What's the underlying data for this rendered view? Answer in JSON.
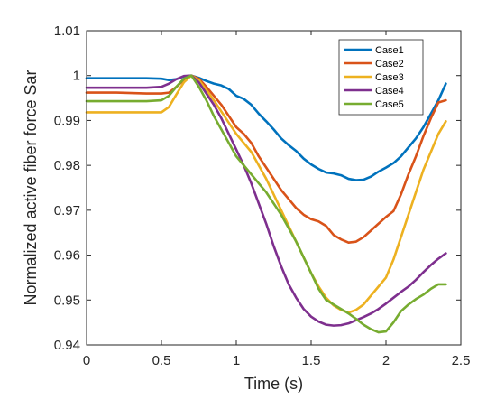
{
  "chart_data": {
    "type": "line",
    "xlabel": "Time (s)",
    "ylabel": "Normalized active fiber force  Sar",
    "xlim": [
      0,
      2.5
    ],
    "ylim": [
      0.94,
      1.01
    ],
    "xticks": [
      0,
      0.5,
      1,
      1.5,
      2,
      2.5
    ],
    "xtick_labels": [
      "0",
      "0.5",
      "1",
      "1.5",
      "2",
      "2.5"
    ],
    "yticks": [
      0.94,
      0.95,
      0.96,
      0.97,
      0.98,
      0.99,
      1.0,
      1.01
    ],
    "ytick_labels": [
      "0.94",
      "0.95",
      "0.96",
      "0.97",
      "0.98",
      "0.99",
      "1",
      "1.01"
    ],
    "grid": false,
    "legend_position": "top-right",
    "series": [
      {
        "name": "Case1",
        "color": "#0072BD",
        "x": [
          0,
          0.1,
          0.2,
          0.3,
          0.4,
          0.5,
          0.55,
          0.6,
          0.65,
          0.7,
          0.75,
          0.8,
          0.85,
          0.9,
          0.95,
          1.0,
          1.05,
          1.1,
          1.15,
          1.2,
          1.25,
          1.3,
          1.35,
          1.4,
          1.45,
          1.5,
          1.55,
          1.6,
          1.65,
          1.7,
          1.75,
          1.8,
          1.85,
          1.9,
          1.95,
          2.0,
          2.05,
          2.1,
          2.15,
          2.2,
          2.25,
          2.3,
          2.35,
          2.4
        ],
        "y": [
          0.9994,
          0.9994,
          0.9994,
          0.9994,
          0.9994,
          0.9993,
          0.999,
          0.9992,
          0.9998,
          1.0,
          0.9995,
          0.9988,
          0.9982,
          0.9978,
          0.997,
          0.9955,
          0.9948,
          0.9935,
          0.9915,
          0.9898,
          0.988,
          0.986,
          0.9845,
          0.9832,
          0.9815,
          0.9802,
          0.9792,
          0.9784,
          0.9782,
          0.9778,
          0.977,
          0.9767,
          0.9768,
          0.9775,
          0.9786,
          0.9795,
          0.9805,
          0.982,
          0.984,
          0.986,
          0.9885,
          0.9915,
          0.9945,
          0.9982
        ]
      },
      {
        "name": "Case2",
        "color": "#D95319",
        "x": [
          0,
          0.1,
          0.2,
          0.3,
          0.4,
          0.5,
          0.55,
          0.6,
          0.65,
          0.7,
          0.75,
          0.8,
          0.85,
          0.9,
          0.95,
          1.0,
          1.05,
          1.1,
          1.15,
          1.2,
          1.25,
          1.3,
          1.35,
          1.4,
          1.45,
          1.5,
          1.55,
          1.6,
          1.65,
          1.7,
          1.75,
          1.8,
          1.85,
          1.9,
          1.95,
          2.0,
          2.05,
          2.1,
          2.15,
          2.2,
          2.25,
          2.3,
          2.35,
          2.4
        ],
        "y": [
          0.9962,
          0.9962,
          0.9962,
          0.9961,
          0.996,
          0.996,
          0.9962,
          0.9975,
          0.999,
          1.0,
          0.9993,
          0.9975,
          0.9955,
          0.9935,
          0.991,
          0.9885,
          0.987,
          0.985,
          0.982,
          0.9795,
          0.977,
          0.9745,
          0.9725,
          0.9705,
          0.969,
          0.968,
          0.9675,
          0.9665,
          0.9645,
          0.9635,
          0.9628,
          0.963,
          0.964,
          0.9655,
          0.967,
          0.9685,
          0.9698,
          0.9735,
          0.978,
          0.982,
          0.9865,
          0.9905,
          0.994,
          0.9945
        ]
      },
      {
        "name": "Case3",
        "color": "#EDB120",
        "x": [
          0,
          0.1,
          0.2,
          0.3,
          0.4,
          0.5,
          0.55,
          0.6,
          0.65,
          0.7,
          0.75,
          0.8,
          0.85,
          0.9,
          0.95,
          1.0,
          1.05,
          1.1,
          1.15,
          1.2,
          1.25,
          1.3,
          1.35,
          1.4,
          1.45,
          1.5,
          1.55,
          1.6,
          1.65,
          1.7,
          1.75,
          1.8,
          1.85,
          1.9,
          1.95,
          2.0,
          2.05,
          2.1,
          2.15,
          2.2,
          2.25,
          2.3,
          2.35,
          2.4
        ],
        "y": [
          0.9918,
          0.9918,
          0.9918,
          0.9918,
          0.9918,
          0.9918,
          0.993,
          0.9958,
          0.9985,
          1.0,
          0.999,
          0.9968,
          0.9945,
          0.992,
          0.9895,
          0.987,
          0.985,
          0.983,
          0.98,
          0.977,
          0.9735,
          0.97,
          0.9665,
          0.963,
          0.9595,
          0.956,
          0.953,
          0.9505,
          0.9488,
          0.9478,
          0.9472,
          0.9478,
          0.949,
          0.951,
          0.953,
          0.955,
          0.959,
          0.964,
          0.969,
          0.974,
          0.979,
          0.983,
          0.987,
          0.9898
        ]
      },
      {
        "name": "Case4",
        "color": "#7E2F8E",
        "x": [
          0,
          0.1,
          0.2,
          0.3,
          0.4,
          0.5,
          0.55,
          0.6,
          0.65,
          0.7,
          0.75,
          0.8,
          0.85,
          0.9,
          0.95,
          1.0,
          1.05,
          1.1,
          1.15,
          1.2,
          1.25,
          1.3,
          1.35,
          1.4,
          1.45,
          1.5,
          1.55,
          1.6,
          1.65,
          1.7,
          1.75,
          1.8,
          1.85,
          1.9,
          1.95,
          2.0,
          2.05,
          2.1,
          2.15,
          2.2,
          2.25,
          2.3,
          2.35,
          2.4
        ],
        "y": [
          0.9973,
          0.9973,
          0.9973,
          0.9973,
          0.9973,
          0.9975,
          0.9982,
          0.9992,
          0.9999,
          1.0,
          0.9985,
          0.996,
          0.9935,
          0.9905,
          0.987,
          0.9835,
          0.98,
          0.976,
          0.9715,
          0.967,
          0.962,
          0.9575,
          0.9535,
          0.9505,
          0.948,
          0.9463,
          0.9452,
          0.9445,
          0.9443,
          0.9444,
          0.9448,
          0.9455,
          0.9462,
          0.947,
          0.948,
          0.9492,
          0.9505,
          0.9518,
          0.953,
          0.9545,
          0.9562,
          0.9578,
          0.9592,
          0.9604
        ]
      },
      {
        "name": "Case5",
        "color": "#77AC30",
        "x": [
          0,
          0.1,
          0.2,
          0.3,
          0.4,
          0.5,
          0.55,
          0.6,
          0.65,
          0.7,
          0.75,
          0.8,
          0.85,
          0.9,
          0.95,
          1.0,
          1.05,
          1.1,
          1.15,
          1.2,
          1.25,
          1.3,
          1.35,
          1.4,
          1.45,
          1.5,
          1.55,
          1.6,
          1.65,
          1.7,
          1.75,
          1.8,
          1.85,
          1.9,
          1.95,
          2.0,
          2.05,
          2.1,
          2.15,
          2.2,
          2.25,
          2.3,
          2.35,
          2.4
        ],
        "y": [
          0.9943,
          0.9943,
          0.9943,
          0.9943,
          0.9943,
          0.9945,
          0.9955,
          0.9975,
          0.9993,
          1.0,
          0.9975,
          0.9945,
          0.991,
          0.988,
          0.985,
          0.982,
          0.98,
          0.978,
          0.976,
          0.974,
          0.9715,
          0.969,
          0.966,
          0.963,
          0.9595,
          0.956,
          0.9525,
          0.95,
          0.949,
          0.948,
          0.947,
          0.9458,
          0.9445,
          0.9435,
          0.9428,
          0.943,
          0.945,
          0.9475,
          0.949,
          0.9502,
          0.9512,
          0.9525,
          0.9535,
          0.9535
        ]
      }
    ]
  }
}
